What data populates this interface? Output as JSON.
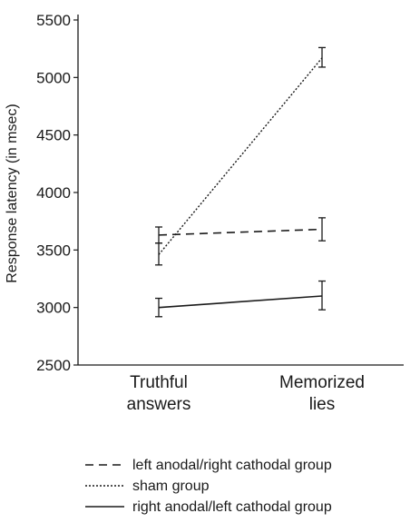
{
  "chart_data": {
    "type": "line",
    "title": "",
    "xlabel": "",
    "ylabel": "Response latency (in msec)",
    "ylim": [
      2500,
      5500
    ],
    "yticks": [
      2500,
      3000,
      3500,
      4000,
      4500,
      5000,
      5500
    ],
    "categories": [
      [
        "Truthful",
        "answers"
      ],
      [
        "Memorized",
        "lies"
      ]
    ],
    "grid": false,
    "legend_position": "bottom",
    "series": [
      {
        "name": "left anodal/right cathodal group",
        "style": "dashed",
        "values": [
          3630,
          3680
        ],
        "error": [
          [
            3560,
            3700
          ],
          [
            3580,
            3780
          ]
        ]
      },
      {
        "name": "sham group",
        "style": "dotted",
        "values": [
          3460,
          5170
        ],
        "error": [
          [
            3370,
            3560
          ],
          [
            5090,
            5260
          ]
        ]
      },
      {
        "name": "right anodal/left cathodal group",
        "style": "solid",
        "values": [
          3000,
          3100
        ],
        "error": [
          [
            2920,
            3080
          ],
          [
            2980,
            3230
          ]
        ]
      }
    ]
  }
}
